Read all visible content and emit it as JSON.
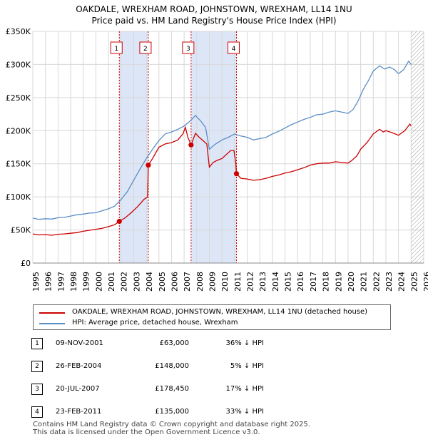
{
  "chart_data": {
    "type": "line",
    "title": "OAKDALE, WREXHAM ROAD, JOHNSTOWN, WREXHAM, LL14 1NU",
    "subtitle": "Price paid vs. HM Land Registry's House Price Index (HPI)",
    "xlim": [
      1995,
      2026
    ],
    "ylim": [
      0,
      350000
    ],
    "x_ticks": [
      1995,
      1996,
      1997,
      1998,
      1999,
      2000,
      2001,
      2002,
      2003,
      2004,
      2005,
      2006,
      2007,
      2008,
      2009,
      2010,
      2011,
      2012,
      2013,
      2014,
      2015,
      2016,
      2017,
      2018,
      2019,
      2020,
      2021,
      2022,
      2023,
      2024,
      2025,
      2026
    ],
    "y_ticks": [
      {
        "value": 0,
        "label": "£0"
      },
      {
        "value": 50000,
        "label": "£50K"
      },
      {
        "value": 100000,
        "label": "£100K"
      },
      {
        "value": 150000,
        "label": "£150K"
      },
      {
        "value": 200000,
        "label": "£200K"
      },
      {
        "value": 250000,
        "label": "£250K"
      },
      {
        "value": 300000,
        "label": "£300K"
      },
      {
        "value": 350000,
        "label": "£350K"
      }
    ],
    "grid": true,
    "future_hatch_from": 2025.0,
    "colors": {
      "property": "#cc0000",
      "hpi": "#5b8ec4",
      "shade": "#dde6f7",
      "marker_line": "#cc0000"
    },
    "series": [
      {
        "name": "OAKDALE, WREXHAM ROAD, JOHNSTOWN, WREXHAM, LL14 1NU (detached house)",
        "color": "#cc0000",
        "points": [
          [
            1995.0,
            44000
          ],
          [
            1995.5,
            42500
          ],
          [
            1996.0,
            43000
          ],
          [
            1996.5,
            42000
          ],
          [
            1997.0,
            43500
          ],
          [
            1997.5,
            44000
          ],
          [
            1998.0,
            45000
          ],
          [
            1998.5,
            46000
          ],
          [
            1999.0,
            48000
          ],
          [
            1999.5,
            49500
          ],
          [
            2000.0,
            51000
          ],
          [
            2000.5,
            52500
          ],
          [
            2001.0,
            55000
          ],
          [
            2001.5,
            58000
          ],
          [
            2001.86,
            63000
          ],
          [
            2002.3,
            68000
          ],
          [
            2002.8,
            76000
          ],
          [
            2003.3,
            85000
          ],
          [
            2003.8,
            96000
          ],
          [
            2004.1,
            100000
          ],
          [
            2004.16,
            148000
          ],
          [
            2004.5,
            158000
          ],
          [
            2005.0,
            175000
          ],
          [
            2005.5,
            180000
          ],
          [
            2006.0,
            182000
          ],
          [
            2006.5,
            186000
          ],
          [
            2006.9,
            195000
          ],
          [
            2007.1,
            205000
          ],
          [
            2007.3,
            190000
          ],
          [
            2007.55,
            178450
          ],
          [
            2007.9,
            196000
          ],
          [
            2008.2,
            190000
          ],
          [
            2008.5,
            185000
          ],
          [
            2008.8,
            180000
          ],
          [
            2009.0,
            145000
          ],
          [
            2009.3,
            152000
          ],
          [
            2009.6,
            155000
          ],
          [
            2010.0,
            158000
          ],
          [
            2010.4,
            165000
          ],
          [
            2010.7,
            170000
          ],
          [
            2010.95,
            170000
          ],
          [
            2011.1,
            150000
          ],
          [
            2011.15,
            135000
          ],
          [
            2011.5,
            128000
          ],
          [
            2012.0,
            127000
          ],
          [
            2012.5,
            125000
          ],
          [
            2013.0,
            126000
          ],
          [
            2013.5,
            128000
          ],
          [
            2014.0,
            131000
          ],
          [
            2014.5,
            133000
          ],
          [
            2015.0,
            136000
          ],
          [
            2015.5,
            138000
          ],
          [
            2016.0,
            141000
          ],
          [
            2016.5,
            144000
          ],
          [
            2017.0,
            148000
          ],
          [
            2017.5,
            150000
          ],
          [
            2018.0,
            151000
          ],
          [
            2018.5,
            151000
          ],
          [
            2019.0,
            153000
          ],
          [
            2019.5,
            152000
          ],
          [
            2020.0,
            151000
          ],
          [
            2020.3,
            155000
          ],
          [
            2020.7,
            162000
          ],
          [
            2021.0,
            172000
          ],
          [
            2021.5,
            182000
          ],
          [
            2022.0,
            195000
          ],
          [
            2022.5,
            202000
          ],
          [
            2022.8,
            198000
          ],
          [
            2023.0,
            200000
          ],
          [
            2023.5,
            197000
          ],
          [
            2024.0,
            193000
          ],
          [
            2024.5,
            200000
          ],
          [
            2024.9,
            210000
          ],
          [
            2025.0,
            207000
          ]
        ]
      },
      {
        "name": "HPI: Average price, detached house, Wrexham",
        "color": "#5b8ec4",
        "points": [
          [
            1995.0,
            68000
          ],
          [
            1995.5,
            66000
          ],
          [
            1996.0,
            67000
          ],
          [
            1996.5,
            66500
          ],
          [
            1997.0,
            68500
          ],
          [
            1997.5,
            69000
          ],
          [
            1998.0,
            71000
          ],
          [
            1998.5,
            73000
          ],
          [
            1999.0,
            74000
          ],
          [
            1999.5,
            75500
          ],
          [
            2000.0,
            76000
          ],
          [
            2000.5,
            79000
          ],
          [
            2001.0,
            82000
          ],
          [
            2001.5,
            86000
          ],
          [
            2002.0,
            96000
          ],
          [
            2002.5,
            108000
          ],
          [
            2003.0,
            125000
          ],
          [
            2003.5,
            142000
          ],
          [
            2004.0,
            158000
          ],
          [
            2004.5,
            172000
          ],
          [
            2005.0,
            185000
          ],
          [
            2005.5,
            195000
          ],
          [
            2006.0,
            198000
          ],
          [
            2006.5,
            202000
          ],
          [
            2007.0,
            207000
          ],
          [
            2007.5,
            215000
          ],
          [
            2007.9,
            223000
          ],
          [
            2008.3,
            215000
          ],
          [
            2008.7,
            205000
          ],
          [
            2009.0,
            172000
          ],
          [
            2009.5,
            180000
          ],
          [
            2010.0,
            186000
          ],
          [
            2010.5,
            190000
          ],
          [
            2011.0,
            195000
          ],
          [
            2011.5,
            192000
          ],
          [
            2012.0,
            190000
          ],
          [
            2012.5,
            186000
          ],
          [
            2013.0,
            188000
          ],
          [
            2013.5,
            190000
          ],
          [
            2014.0,
            195000
          ],
          [
            2014.5,
            199000
          ],
          [
            2015.0,
            204000
          ],
          [
            2015.5,
            209000
          ],
          [
            2016.0,
            213000
          ],
          [
            2016.5,
            217000
          ],
          [
            2017.0,
            220000
          ],
          [
            2017.5,
            224000
          ],
          [
            2018.0,
            225000
          ],
          [
            2018.5,
            228000
          ],
          [
            2019.0,
            230000
          ],
          [
            2019.5,
            228000
          ],
          [
            2020.0,
            226000
          ],
          [
            2020.4,
            232000
          ],
          [
            2020.8,
            245000
          ],
          [
            2021.2,
            262000
          ],
          [
            2021.6,
            275000
          ],
          [
            2022.0,
            290000
          ],
          [
            2022.5,
            298000
          ],
          [
            2022.9,
            293000
          ],
          [
            2023.3,
            296000
          ],
          [
            2023.7,
            292000
          ],
          [
            2024.0,
            286000
          ],
          [
            2024.4,
            292000
          ],
          [
            2024.8,
            305000
          ],
          [
            2025.0,
            300000
          ]
        ]
      }
    ],
    "sales": [
      {
        "n": "1",
        "x": 2001.86,
        "y": 63000
      },
      {
        "n": "2",
        "x": 2004.16,
        "y": 148000
      },
      {
        "n": "3",
        "x": 2007.55,
        "y": 178450
      },
      {
        "n": "4",
        "x": 2011.15,
        "y": 135000
      }
    ],
    "shaded_ranges": [
      [
        2001.86,
        2004.16
      ],
      [
        2007.55,
        2011.15
      ]
    ]
  },
  "legend": {
    "property_label": "OAKDALE, WREXHAM ROAD, JOHNSTOWN, WREXHAM, LL14 1NU (detached house)",
    "hpi_label": "HPI: Average price, detached house, Wrexham"
  },
  "transactions": [
    {
      "n": "1",
      "date": "09-NOV-2001",
      "price": "£63,000",
      "hpi": "36% ↓ HPI"
    },
    {
      "n": "2",
      "date": "26-FEB-2004",
      "price": "£148,000",
      "hpi": "5% ↓ HPI"
    },
    {
      "n": "3",
      "date": "20-JUL-2007",
      "price": "£178,450",
      "hpi": "17% ↓ HPI"
    },
    {
      "n": "4",
      "date": "23-FEB-2011",
      "price": "£135,000",
      "hpi": "33% ↓ HPI"
    }
  ],
  "footer": {
    "line1": "Contains HM Land Registry data © Crown copyright and database right 2025.",
    "line2": "This data is licensed under the Open Government Licence v3.0."
  }
}
